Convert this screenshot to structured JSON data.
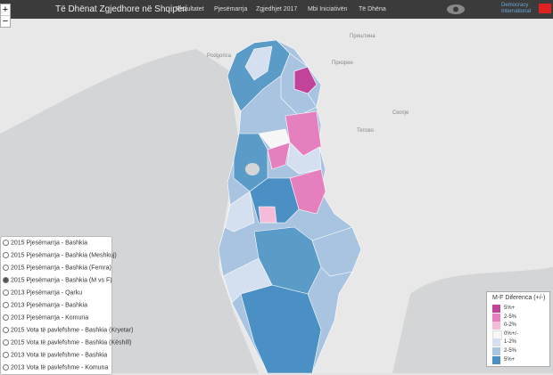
{
  "header": {
    "title": "Të Dhënat Zgjedhore në Shqipëri",
    "nav": [
      "Rezultatet",
      "Pjesëmarrja",
      "Zgjedhjet 2017",
      "Mbi Iniciativën",
      "Të Dhëna"
    ],
    "brand": [
      "Democracy",
      "International"
    ]
  },
  "zoom": {
    "in": "+",
    "out": "−"
  },
  "map_labels": [
    "Podgorica",
    "Приштина",
    "Скопје",
    "Тетово",
    "Призрен"
  ],
  "layers": {
    "checked": 3,
    "items": [
      "2015 Pjesëmarrja - Bashkia",
      "2015 Pjesëmarrja - Bashkia (Meshkuj)",
      "2015 Pjesëmarrja - Bashkia (Femra)",
      "2015 Pjesëmarrja - Bashkia (M vs F)",
      "2013 Pjesëmarrja - Qarku",
      "2013 Pjesëmarrja - Bashkia",
      "2013 Pjesëmarrja - Komuna",
      "2015 Vota të pavlefshme - Bashkia (Kryetar)",
      "2015 Vota të pavlefshme - Bashkia (Këshill)",
      "2013 Vota të pavlefshme - Bashkia",
      "2013 Vota të pavlefshme - Komuna"
    ]
  },
  "legend": {
    "title": "M-F Diferenca (+/-)",
    "items": [
      {
        "label": "5%+",
        "color": "#c2449a"
      },
      {
        "label": "2-5%",
        "color": "#e67fbd"
      },
      {
        "label": "0-2%",
        "color": "#f4bcd9"
      },
      {
        "label": "0%+/-",
        "color": "#f7f7f7"
      },
      {
        "label": "1-2%",
        "color": "#d4dff0"
      },
      {
        "label": "2-5%",
        "color": "#a9c4e0"
      },
      {
        "label": "5%+",
        "color": "#4a90c4"
      }
    ]
  }
}
